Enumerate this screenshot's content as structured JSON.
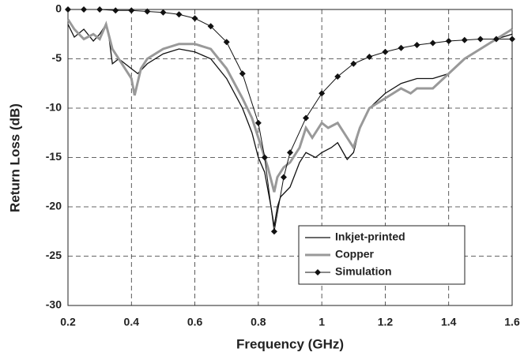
{
  "chart_data": {
    "type": "line",
    "xlabel": "Frequency (GHz)",
    "ylabel": "Return Loss (dB)",
    "xlim": [
      0.2,
      1.6
    ],
    "xticks": [
      0.2,
      0.4,
      0.6,
      0.8,
      1,
      1.2,
      1.4,
      1.6
    ],
    "ylim": [
      -30,
      0
    ],
    "yticks": [
      0,
      -5,
      -10,
      -15,
      -20,
      -25,
      -30
    ],
    "grid": true,
    "legend": "lower right",
    "series": [
      {
        "name": "Inkjet-printed",
        "color": "#111111",
        "width": 1.3,
        "marker": false,
        "x": [
          0.2,
          0.22,
          0.25,
          0.28,
          0.3,
          0.32,
          0.33,
          0.34,
          0.36,
          0.38,
          0.4,
          0.42,
          0.45,
          0.5,
          0.55,
          0.6,
          0.65,
          0.7,
          0.75,
          0.78,
          0.8,
          0.82,
          0.84,
          0.85,
          0.86,
          0.87,
          0.9,
          0.93,
          0.95,
          0.98,
          1.0,
          1.03,
          1.05,
          1.08,
          1.1,
          1.12,
          1.15,
          1.2,
          1.25,
          1.3,
          1.35,
          1.4,
          1.45,
          1.5,
          1.55,
          1.6
        ],
        "values": [
          -1.5,
          -2.8,
          -2,
          -3.2,
          -2.5,
          -1.5,
          -3,
          -5.5,
          -5,
          -5.5,
          -6,
          -6.5,
          -5.5,
          -4.5,
          -4,
          -4.3,
          -5,
          -7,
          -10,
          -12.5,
          -15,
          -16.5,
          -20,
          -22,
          -20,
          -19,
          -18,
          -15.5,
          -14.5,
          -15,
          -14.5,
          -14,
          -13.5,
          -15.2,
          -14.5,
          -12,
          -10,
          -8.5,
          -7.5,
          -7,
          -7,
          -6.5,
          -5,
          -4,
          -3,
          -2.5
        ]
      },
      {
        "name": "Copper",
        "color": "#999999",
        "width": 3,
        "marker": false,
        "x": [
          0.2,
          0.22,
          0.25,
          0.28,
          0.3,
          0.32,
          0.34,
          0.36,
          0.38,
          0.4,
          0.41,
          0.43,
          0.45,
          0.5,
          0.55,
          0.6,
          0.65,
          0.7,
          0.75,
          0.78,
          0.8,
          0.83,
          0.85,
          0.86,
          0.88,
          0.9,
          0.93,
          0.95,
          0.97,
          1.0,
          1.02,
          1.05,
          1.08,
          1.1,
          1.12,
          1.15,
          1.2,
          1.25,
          1.28,
          1.3,
          1.35,
          1.4,
          1.45,
          1.5,
          1.55,
          1.6
        ],
        "values": [
          -1,
          -2,
          -3,
          -2.5,
          -3,
          -1.5,
          -4,
          -5,
          -6,
          -7,
          -8.7,
          -6,
          -5,
          -4,
          -3.5,
          -3.5,
          -4,
          -6,
          -9,
          -11,
          -13,
          -16,
          -18.5,
          -17,
          -16,
          -15.5,
          -14,
          -12,
          -13,
          -11.5,
          -12,
          -11.5,
          -13,
          -14,
          -12,
          -10,
          -9,
          -8,
          -8.5,
          -8,
          -8,
          -6.5,
          -5,
          -4,
          -3,
          -2
        ]
      },
      {
        "name": "Simulation",
        "color": "#111111",
        "width": 1,
        "marker": true,
        "x": [
          0.2,
          0.25,
          0.3,
          0.35,
          0.4,
          0.45,
          0.5,
          0.55,
          0.6,
          0.65,
          0.7,
          0.75,
          0.8,
          0.82,
          0.85,
          0.88,
          0.9,
          0.95,
          1.0,
          1.05,
          1.1,
          1.15,
          1.2,
          1.25,
          1.3,
          1.35,
          1.4,
          1.45,
          1.5,
          1.55,
          1.6
        ],
        "values": [
          0,
          0,
          0,
          -0.1,
          -0.1,
          -0.2,
          -0.3,
          -0.5,
          -0.9,
          -1.7,
          -3.3,
          -6.5,
          -11.5,
          -15,
          -22.5,
          -17,
          -14.5,
          -11,
          -8.5,
          -6.8,
          -5.5,
          -4.8,
          -4.3,
          -3.9,
          -3.6,
          -3.4,
          -3.2,
          -3.1,
          -3,
          -3,
          -3
        ]
      }
    ]
  }
}
